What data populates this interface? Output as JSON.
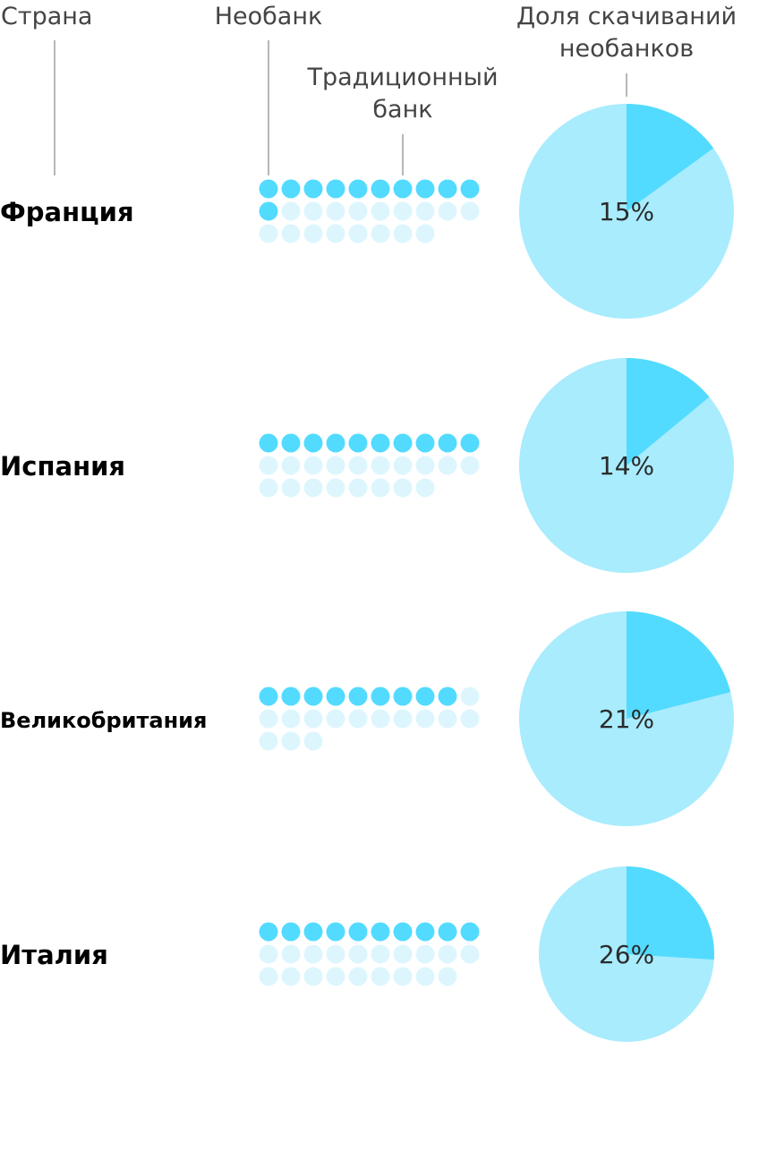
{
  "headers": {
    "country": "Страна",
    "neobank": "Необанк",
    "traditional_line1": "Традиционный",
    "traditional_line2": "банк",
    "share_line1": "Доля скачиваний",
    "share_line2": "необанков"
  },
  "colors": {
    "neobank": "#52dbff",
    "traditional": "#ddf6fe",
    "pie_neobank": "#52dbff",
    "pie_rest": "#a8ecfd",
    "header_text": "#444444",
    "guide_line": "#b7b7b7"
  },
  "chart_data": {
    "type": "pie",
    "unit": "%",
    "rows": [
      {
        "country": "Франция",
        "neobank_dots": 11,
        "traditional_dots": 17,
        "share": 15,
        "share_label": "15%"
      },
      {
        "country": "Испания",
        "neobank_dots": 10,
        "traditional_dots": 18,
        "share": 14,
        "share_label": "14%"
      },
      {
        "country": "Великобритания",
        "neobank_dots": 9,
        "traditional_dots": 14,
        "share": 21,
        "share_label": "21%"
      },
      {
        "country": "Италия",
        "neobank_dots": 10,
        "traditional_dots": 19,
        "share": 26,
        "share_label": "26%"
      }
    ]
  }
}
